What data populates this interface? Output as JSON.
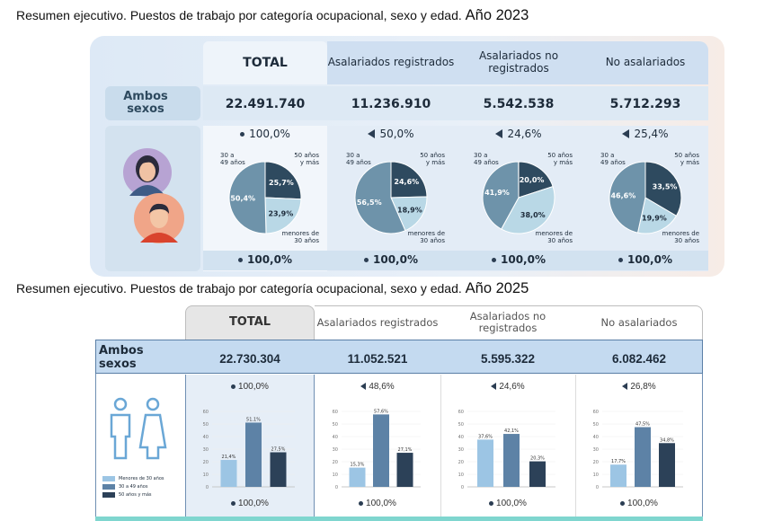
{
  "headings": {
    "h1_text": "Resumen ejecutivo. Puestos de trabajo por categoría ocupacional, sexo y edad.",
    "h1_year": "Año 2023",
    "h2_text": "Resumen ejecutivo. Puestos de trabajo por categoría ocupacional, sexo y edad.",
    "h2_year": "Año 2025"
  },
  "colors": {
    "dark": "#2e4a5f",
    "mid": "#6e93aa",
    "light": "#b9d8e6",
    "bar_light": "#9cc5e4",
    "bar_mid": "#5d82a6",
    "bar_dark": "#2c4158"
  },
  "y2023": {
    "row_label": "Ambos sexos",
    "columns": [
      {
        "label": "TOTAL",
        "value": "22.491.740",
        "share": "100,0%",
        "share_marker": "dot",
        "bottom": "100,0%"
      },
      {
        "label": "Asalariados registrados",
        "value": "11.236.910",
        "share": "50,0%",
        "share_marker": "triangle",
        "bottom": "100,0%"
      },
      {
        "label": "Asalariados no registrados",
        "value": "5.542.538",
        "share": "24,6%",
        "share_marker": "triangle",
        "bottom": "100,0%"
      },
      {
        "label": "No asalariados",
        "value": "5.712.293",
        "share": "25,4%",
        "share_marker": "triangle",
        "bottom": "100,0%"
      }
    ],
    "pie_labels": {
      "mid": "30 a 49 años",
      "old": "50 años y más",
      "young": "menores de 30 años"
    }
  },
  "y2025": {
    "row_label": "Ambos sexos",
    "columns": [
      {
        "label": "TOTAL",
        "value": "22.730.304",
        "share": "100,0%",
        "share_marker": "dot",
        "bottom": "100,0%"
      },
      {
        "label": "Asalariados registrados",
        "value": "11.052.521",
        "share": "48,6%",
        "share_marker": "triangle",
        "bottom": "100,0%"
      },
      {
        "label": "Asalariados no registrados",
        "value": "5.595.322",
        "share": "24,6%",
        "share_marker": "triangle",
        "bottom": "100,0%"
      },
      {
        "label": "No asalariados",
        "value": "6.082.462",
        "share": "26,8%",
        "share_marker": "triangle",
        "bottom": "100,0%"
      }
    ],
    "legend": [
      "Menores de 30 años",
      "30 a 49 años",
      "50 años y más"
    ]
  },
  "chart_data": [
    {
      "type": "pie",
      "title": "",
      "categories": [
        "menores de 30 años",
        "30 a 49 años",
        "50 años y más"
      ],
      "charts": [
        {
          "name": "TOTAL",
          "values": [
            23.9,
            50.4,
            25.7
          ]
        },
        {
          "name": "Asalariados registrados",
          "values": [
            18.9,
            56.5,
            24.6
          ]
        },
        {
          "name": "Asalariados no registrados",
          "values": [
            38.0,
            41.9,
            20.0
          ]
        },
        {
          "name": "No asalariados",
          "values": [
            19.9,
            46.6,
            33.5
          ]
        }
      ]
    },
    {
      "type": "bar",
      "title": "",
      "categories": [
        "Menores de 30 años",
        "30 a 49 años",
        "50 años y más"
      ],
      "ylim": [
        0,
        60
      ],
      "yticks": [
        0,
        10,
        20,
        30,
        40,
        50,
        60
      ],
      "charts": [
        {
          "name": "TOTAL",
          "values": [
            21.4,
            51.1,
            27.5
          ],
          "labels": [
            "21,4%",
            "51,1%",
            "27,5%"
          ]
        },
        {
          "name": "Asalariados registrados",
          "values": [
            15.3,
            57.6,
            27.1
          ],
          "labels": [
            "15,3%",
            "57,6%",
            "27,1%"
          ]
        },
        {
          "name": "Asalariados no registrados",
          "values": [
            37.6,
            42.1,
            20.3
          ],
          "labels": [
            "37,6%",
            "42,1%",
            "20,3%"
          ]
        },
        {
          "name": "No asalariados",
          "values": [
            17.7,
            47.5,
            34.8
          ],
          "labels": [
            "17,7%",
            "47,5%",
            "34,8%"
          ]
        }
      ]
    }
  ]
}
